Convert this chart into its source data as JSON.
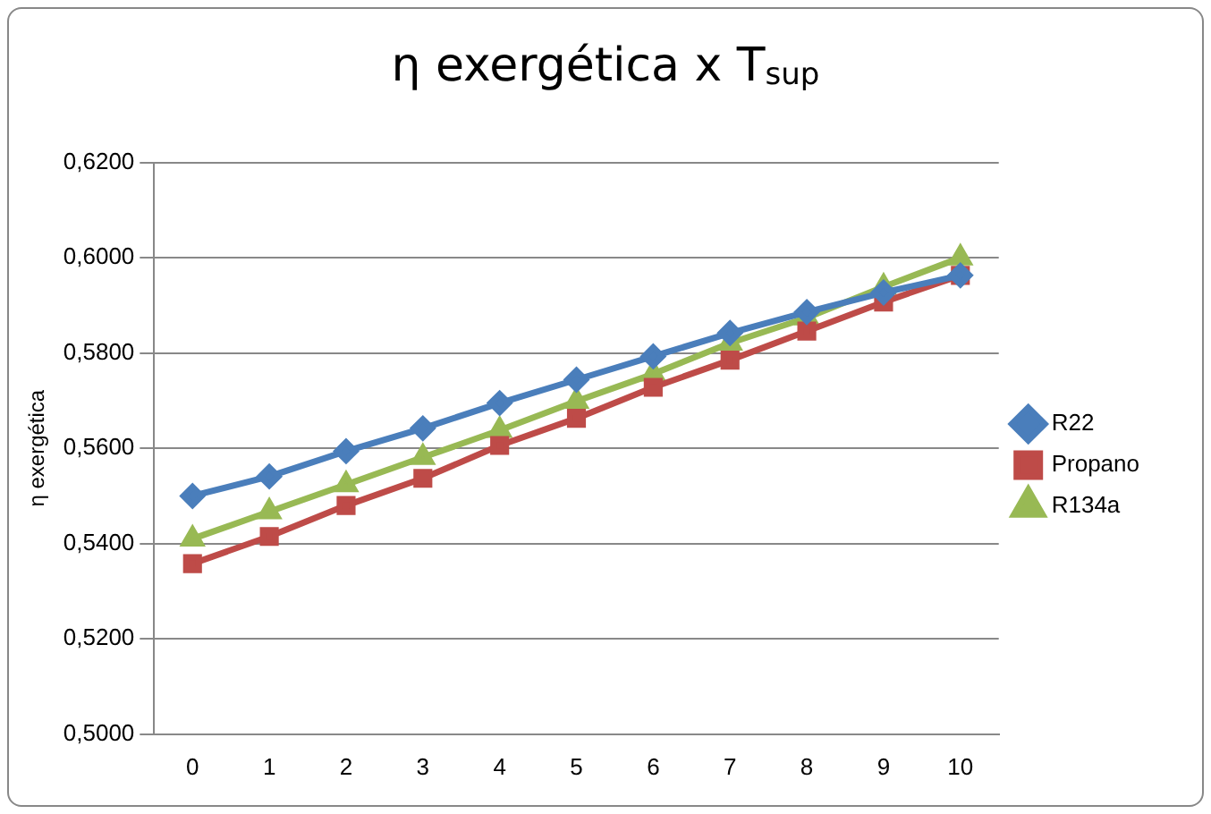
{
  "chart_data": {
    "type": "line",
    "title": "η exergética x T$_{sup}$",
    "ylabel": "η exergética",
    "categories": [
      "0",
      "1",
      "2",
      "3",
      "4",
      "5",
      "6",
      "7",
      "8",
      "9",
      "10"
    ],
    "series": [
      {
        "name": "R22",
        "color": "#4a7ebb",
        "marker": "diamond",
        "values": [
          0.55,
          0.5541,
          0.5594,
          0.5642,
          0.5695,
          0.5744,
          0.5793,
          0.5842,
          0.5886,
          0.5927,
          0.5963
        ]
      },
      {
        "name": "Propano",
        "color": "#be4b48",
        "marker": "square",
        "values": [
          0.5358,
          0.5415,
          0.548,
          0.5537,
          0.5606,
          0.5663,
          0.5728,
          0.5785,
          0.5846,
          0.5907,
          0.5963
        ]
      },
      {
        "name": "R134a",
        "color": "#98b954",
        "marker": "triangle",
        "values": [
          0.541,
          0.5467,
          0.5524,
          0.5581,
          0.5638,
          0.5699,
          0.5756,
          0.5821,
          0.5874,
          0.5939,
          0.6
        ]
      }
    ],
    "ylim": [
      0.5,
      0.62
    ],
    "yticks": [
      {
        "value": 0.5,
        "label": "0,5000"
      },
      {
        "value": 0.52,
        "label": "0,5200"
      },
      {
        "value": 0.54,
        "label": "0,5400"
      },
      {
        "value": 0.56,
        "label": "0,5600"
      },
      {
        "value": 0.58,
        "label": "0,5800"
      },
      {
        "value": 0.6,
        "label": "0,6000"
      },
      {
        "value": 0.62,
        "label": "0,6200"
      }
    ],
    "grid": "y",
    "legend": "right"
  }
}
